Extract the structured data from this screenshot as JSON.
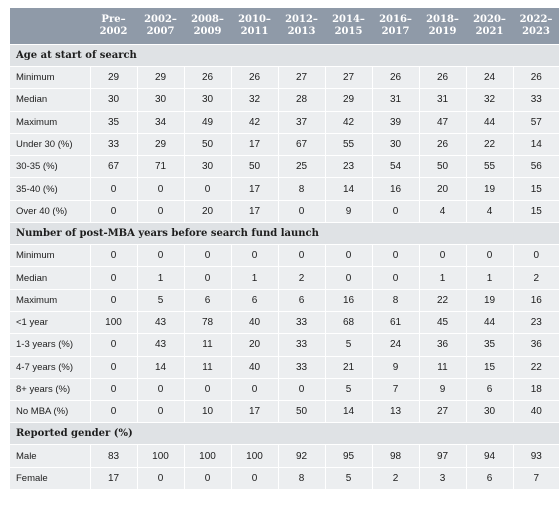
{
  "header": {
    "columns": [
      {
        "l1": "Pre–",
        "l2": "2002"
      },
      {
        "l1": "2002–",
        "l2": "2007"
      },
      {
        "l1": "2008–",
        "l2": "2009"
      },
      {
        "l1": "2010–",
        "l2": "2011"
      },
      {
        "l1": "2012–",
        "l2": "2013"
      },
      {
        "l1": "2014–",
        "l2": "2015"
      },
      {
        "l1": "2016–",
        "l2": "2017"
      },
      {
        "l1": "2018–",
        "l2": "2019"
      },
      {
        "l1": "2020–",
        "l2": "2021"
      },
      {
        "l1": "2022–",
        "l2": "2023"
      }
    ]
  },
  "sections": [
    {
      "title": "Age at start of search",
      "rows": [
        {
          "label": "Minimum",
          "values": [
            "29",
            "29",
            "26",
            "26",
            "27",
            "27",
            "26",
            "26",
            "24",
            "26"
          ]
        },
        {
          "label": "Median",
          "values": [
            "30",
            "30",
            "30",
            "32",
            "28",
            "29",
            "31",
            "31",
            "32",
            "33"
          ]
        },
        {
          "label": "Maximum",
          "values": [
            "35",
            "34",
            "49",
            "42",
            "37",
            "42",
            "39",
            "47",
            "44",
            "57"
          ]
        },
        {
          "label": "Under 30 (%)",
          "values": [
            "33",
            "29",
            "50",
            "17",
            "67",
            "55",
            "30",
            "26",
            "22",
            "14"
          ]
        },
        {
          "label": "30-35 (%)",
          "values": [
            "67",
            "71",
            "30",
            "50",
            "25",
            "23",
            "54",
            "50",
            "55",
            "56"
          ]
        },
        {
          "label": "35-40 (%)",
          "values": [
            "0",
            "0",
            "0",
            "17",
            "8",
            "14",
            "16",
            "20",
            "19",
            "15"
          ]
        },
        {
          "label": "Over 40 (%)",
          "values": [
            "0",
            "0",
            "20",
            "17",
            "0",
            "9",
            "0",
            "4",
            "4",
            "15"
          ]
        }
      ]
    },
    {
      "title": "Number of post-MBA years before search fund launch",
      "rows": [
        {
          "label": "Minimum",
          "values": [
            "0",
            "0",
            "0",
            "0",
            "0",
            "0",
            "0",
            "0",
            "0",
            "0"
          ]
        },
        {
          "label": "Median",
          "values": [
            "0",
            "1",
            "0",
            "1",
            "2",
            "0",
            "0",
            "1",
            "1",
            "2"
          ]
        },
        {
          "label": "Maximum",
          "values": [
            "0",
            "5",
            "6",
            "6",
            "6",
            "16",
            "8",
            "22",
            "19",
            "16"
          ]
        },
        {
          "label": "<1 year",
          "values": [
            "100",
            "43",
            "78",
            "40",
            "33",
            "68",
            "61",
            "45",
            "44",
            "23"
          ]
        },
        {
          "label": "1-3 years (%)",
          "values": [
            "0",
            "43",
            "11",
            "20",
            "33",
            "5",
            "24",
            "36",
            "35",
            "36"
          ]
        },
        {
          "label": "4-7 years (%)",
          "values": [
            "0",
            "14",
            "11",
            "40",
            "33",
            "21",
            "9",
            "11",
            "15",
            "22"
          ]
        },
        {
          "label": "8+ years (%)",
          "values": [
            "0",
            "0",
            "0",
            "0",
            "0",
            "5",
            "7",
            "9",
            "6",
            "18"
          ]
        },
        {
          "label": "No MBA (%)",
          "values": [
            "0",
            "0",
            "10",
            "17",
            "50",
            "14",
            "13",
            "27",
            "30",
            "40"
          ]
        }
      ]
    },
    {
      "title": "Reported gender (%)",
      "rows": [
        {
          "label": "Male",
          "values": [
            "83",
            "100",
            "100",
            "100",
            "92",
            "95",
            "98",
            "97",
            "94",
            "93"
          ]
        },
        {
          "label": "Female",
          "values": [
            "17",
            "0",
            "0",
            "0",
            "8",
            "5",
            "2",
            "3",
            "6",
            "7"
          ]
        }
      ]
    }
  ]
}
